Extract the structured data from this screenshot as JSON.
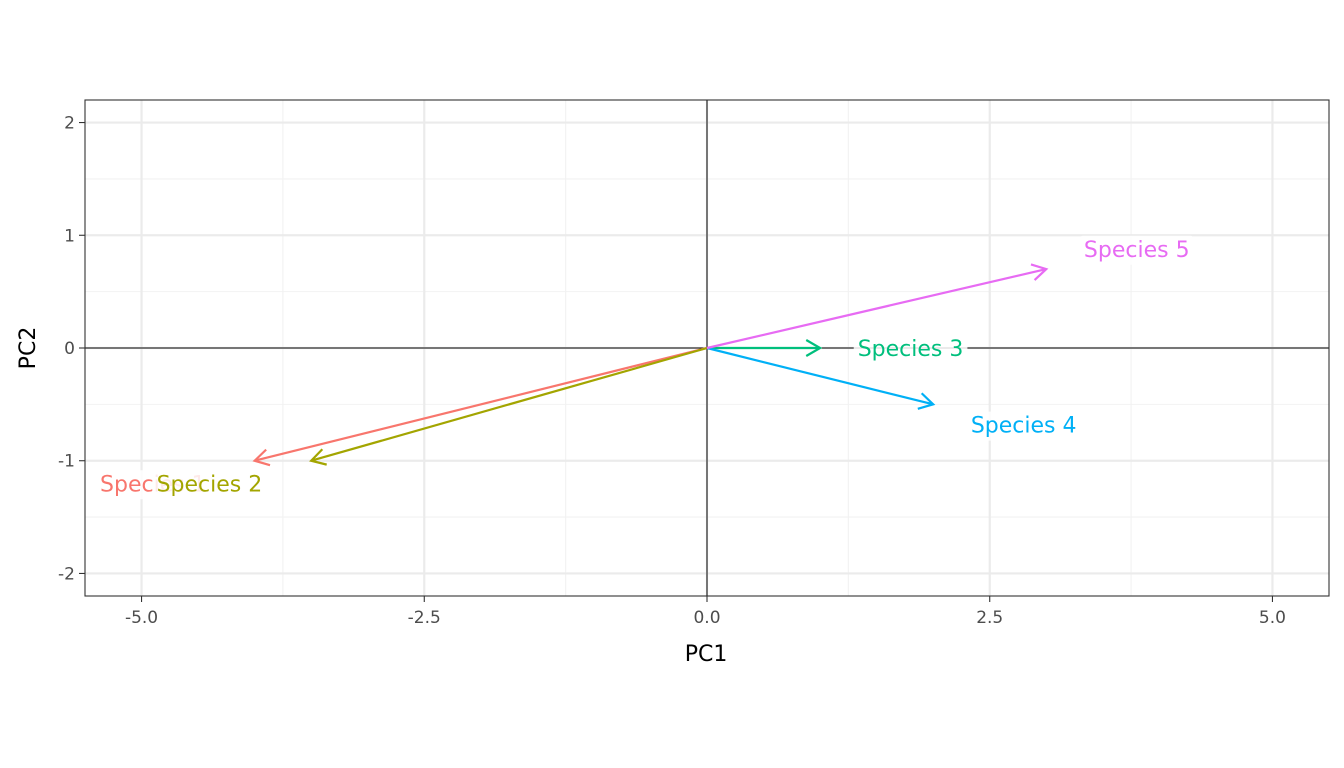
{
  "chart_data": {
    "type": "biplot",
    "xlabel": "PC1",
    "ylabel": "PC2",
    "xlim": [
      -5.5,
      5.5
    ],
    "ylim": [
      -2.2,
      2.2
    ],
    "x_ticks": [
      -5.0,
      -2.5,
      0.0,
      2.5,
      5.0
    ],
    "x_tick_labels": [
      "-5.0",
      "-2.5",
      "0.0",
      "2.5",
      "5.0"
    ],
    "y_ticks": [
      -2,
      -1,
      0,
      1,
      2
    ],
    "y_tick_labels": [
      "-2",
      "-1",
      "0",
      "1",
      "2"
    ],
    "grid": true,
    "legend": "none",
    "vectors": [
      {
        "name": "Species 1",
        "display_label": "Species 1",
        "x": -4.0,
        "y": -1.0,
        "label_x": -4.9,
        "label_y": -1.2,
        "color": "#F8766D"
      },
      {
        "name": "Species 2",
        "display_label": "Species 2",
        "x": -3.5,
        "y": -1.0,
        "label_x": -4.4,
        "label_y": -1.2,
        "color": "#A3A500"
      },
      {
        "name": "Species 3",
        "display_label": "Species 3",
        "x": 1.0,
        "y": 0.0,
        "label_x": 1.8,
        "label_y": 0.0,
        "color": "#00BF7D"
      },
      {
        "name": "Species 4",
        "display_label": "Species 4",
        "x": 2.0,
        "y": -0.5,
        "label_x": 2.8,
        "label_y": -0.68,
        "color": "#00B0F6"
      },
      {
        "name": "Species 5",
        "display_label": "Species 5",
        "x": 3.0,
        "y": 0.7,
        "label_x": 3.8,
        "label_y": 0.88,
        "color": "#E76BF3"
      }
    ]
  }
}
